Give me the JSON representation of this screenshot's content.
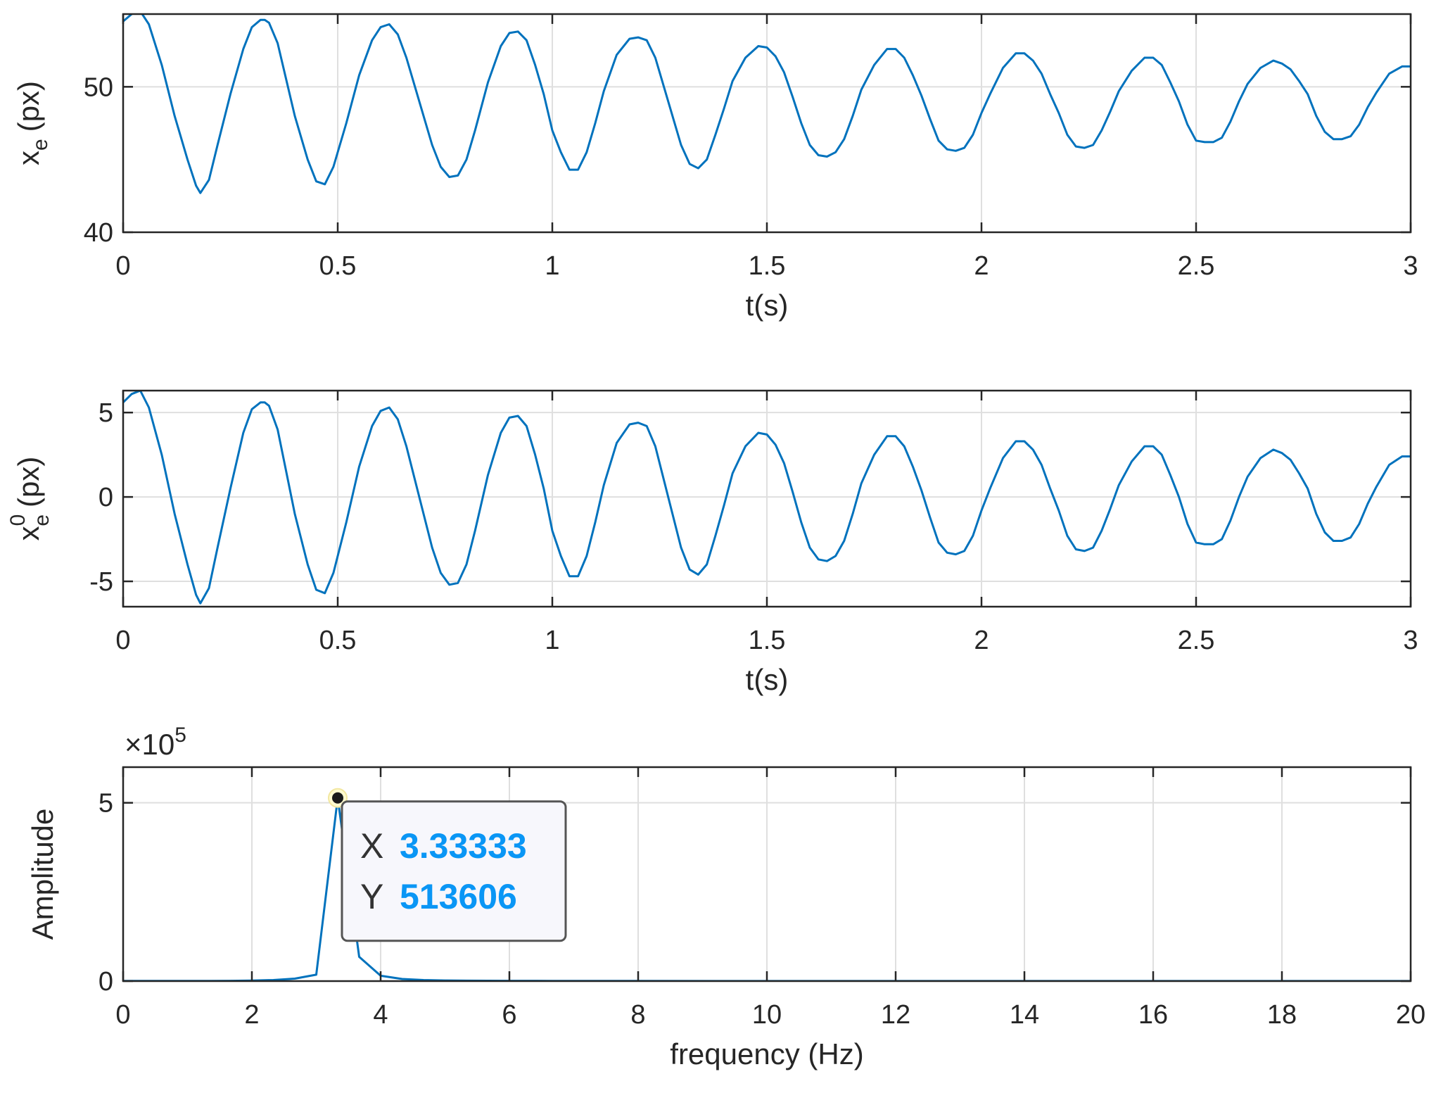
{
  "chart_data": [
    {
      "type": "line",
      "xlabel": "t(s)",
      "ylabel": {
        "base": "x",
        "sub": "e",
        "sup": "",
        "unit": "(px)"
      },
      "xlim": [
        0,
        3
      ],
      "ylim": [
        40,
        55
      ],
      "xticks": [
        "0",
        "0.5",
        "1",
        "1.5",
        "2",
        "2.5",
        "3"
      ],
      "yticks": [
        "40",
        "50"
      ],
      "grid": true,
      "series": [
        {
          "color": "#0072BD",
          "x": [
            0,
            0.02,
            0.04,
            0.06,
            0.09,
            0.12,
            0.15,
            0.17,
            0.18,
            0.2,
            0.22,
            0.25,
            0.28,
            0.3,
            0.32,
            0.33,
            0.34,
            0.36,
            0.38,
            0.4,
            0.43,
            0.45,
            0.47,
            0.49,
            0.52,
            0.55,
            0.58,
            0.6,
            0.62,
            0.64,
            0.66,
            0.68,
            0.7,
            0.72,
            0.74,
            0.76,
            0.78,
            0.8,
            0.82,
            0.85,
            0.88,
            0.9,
            0.92,
            0.94,
            0.96,
            0.98,
            1.0,
            1.02,
            1.04,
            1.06,
            1.08,
            1.1,
            1.12,
            1.15,
            1.18,
            1.2,
            1.22,
            1.24,
            1.26,
            1.28,
            1.3,
            1.32,
            1.34,
            1.36,
            1.38,
            1.4,
            1.42,
            1.45,
            1.48,
            1.5,
            1.52,
            1.54,
            1.56,
            1.58,
            1.6,
            1.62,
            1.64,
            1.66,
            1.68,
            1.7,
            1.72,
            1.75,
            1.78,
            1.8,
            1.82,
            1.84,
            1.86,
            1.88,
            1.9,
            1.92,
            1.94,
            1.96,
            1.98,
            2.0,
            2.02,
            2.05,
            2.08,
            2.1,
            2.12,
            2.14,
            2.16,
            2.18,
            2.2,
            2.22,
            2.24,
            2.26,
            2.28,
            2.3,
            2.32,
            2.35,
            2.38,
            2.4,
            2.42,
            2.44,
            2.46,
            2.48,
            2.5,
            2.52,
            2.54,
            2.56,
            2.58,
            2.6,
            2.62,
            2.65,
            2.68,
            2.7,
            2.72,
            2.74,
            2.76,
            2.78,
            2.8,
            2.82,
            2.84,
            2.86,
            2.88,
            2.9,
            2.92,
            2.95,
            2.98,
            3.0
          ],
          "y": [
            54.5,
            55.0,
            55.2,
            54.3,
            51.5,
            48.0,
            45.0,
            43.2,
            42.7,
            43.6,
            46.0,
            49.5,
            52.6,
            54.1,
            54.6,
            54.6,
            54.4,
            53.0,
            50.5,
            48.0,
            45.0,
            43.5,
            43.3,
            44.5,
            47.5,
            50.8,
            53.2,
            54.1,
            54.3,
            53.6,
            52.0,
            50.0,
            48.0,
            46.0,
            44.5,
            43.8,
            43.9,
            45.0,
            47.0,
            50.3,
            52.8,
            53.7,
            53.8,
            53.2,
            51.5,
            49.5,
            47.0,
            45.5,
            44.3,
            44.3,
            45.5,
            47.5,
            49.7,
            52.2,
            53.3,
            53.4,
            53.2,
            52.0,
            50.0,
            48.0,
            46.0,
            44.7,
            44.4,
            45.0,
            46.7,
            48.5,
            50.4,
            52.0,
            52.8,
            52.7,
            52.1,
            51.0,
            49.3,
            47.5,
            46.0,
            45.3,
            45.2,
            45.5,
            46.4,
            48.0,
            49.8,
            51.5,
            52.6,
            52.6,
            52.0,
            50.8,
            49.4,
            47.8,
            46.3,
            45.7,
            45.6,
            45.8,
            46.7,
            48.2,
            49.5,
            51.3,
            52.3,
            52.3,
            51.8,
            50.9,
            49.5,
            48.2,
            46.7,
            45.9,
            45.8,
            46.0,
            47.0,
            48.3,
            49.7,
            51.1,
            52.0,
            52.0,
            51.5,
            50.3,
            49.0,
            47.4,
            46.3,
            46.2,
            46.2,
            46.5,
            47.6,
            49.0,
            50.2,
            51.3,
            51.8,
            51.6,
            51.2,
            50.4,
            49.5,
            48.0,
            46.9,
            46.4,
            46.4,
            46.6,
            47.4,
            48.6,
            49.6,
            50.9,
            51.4,
            51.4
          ]
        }
      ]
    },
    {
      "type": "line",
      "xlabel": "t(s)",
      "ylabel": {
        "base": "x",
        "sub": "e",
        "sup": "0",
        "unit": "(px)"
      },
      "xlim": [
        0,
        3
      ],
      "ylim": [
        -6.5,
        6.3
      ],
      "xticks": [
        "0",
        "0.5",
        "1",
        "1.5",
        "2",
        "2.5",
        "3"
      ],
      "yticks": [
        "-5",
        "0",
        "5"
      ],
      "grid": true,
      "series": [
        {
          "color": "#0072BD",
          "x": [
            0,
            0.02,
            0.04,
            0.06,
            0.09,
            0.12,
            0.15,
            0.17,
            0.18,
            0.2,
            0.22,
            0.25,
            0.28,
            0.3,
            0.32,
            0.33,
            0.34,
            0.36,
            0.38,
            0.4,
            0.43,
            0.45,
            0.47,
            0.49,
            0.52,
            0.55,
            0.58,
            0.6,
            0.62,
            0.64,
            0.66,
            0.68,
            0.7,
            0.72,
            0.74,
            0.76,
            0.78,
            0.8,
            0.82,
            0.85,
            0.88,
            0.9,
            0.92,
            0.94,
            0.96,
            0.98,
            1.0,
            1.02,
            1.04,
            1.06,
            1.08,
            1.1,
            1.12,
            1.15,
            1.18,
            1.2,
            1.22,
            1.24,
            1.26,
            1.28,
            1.3,
            1.32,
            1.34,
            1.36,
            1.38,
            1.4,
            1.42,
            1.45,
            1.48,
            1.5,
            1.52,
            1.54,
            1.56,
            1.58,
            1.6,
            1.62,
            1.64,
            1.66,
            1.68,
            1.7,
            1.72,
            1.75,
            1.78,
            1.8,
            1.82,
            1.84,
            1.86,
            1.88,
            1.9,
            1.92,
            1.94,
            1.96,
            1.98,
            2.0,
            2.02,
            2.05,
            2.08,
            2.1,
            2.12,
            2.14,
            2.16,
            2.18,
            2.2,
            2.22,
            2.24,
            2.26,
            2.28,
            2.3,
            2.32,
            2.35,
            2.38,
            2.4,
            2.42,
            2.44,
            2.46,
            2.48,
            2.5,
            2.52,
            2.54,
            2.56,
            2.58,
            2.6,
            2.62,
            2.65,
            2.68,
            2.7,
            2.72,
            2.74,
            2.76,
            2.78,
            2.8,
            2.82,
            2.84,
            2.86,
            2.88,
            2.9,
            2.92,
            2.95,
            2.98,
            3.0
          ],
          "y": [
            5.6,
            6.1,
            6.3,
            5.3,
            2.5,
            -1.0,
            -4.0,
            -5.8,
            -6.3,
            -5.4,
            -3.0,
            0.5,
            3.8,
            5.2,
            5.6,
            5.6,
            5.4,
            4.0,
            1.5,
            -1.0,
            -4.0,
            -5.5,
            -5.7,
            -4.5,
            -1.5,
            1.8,
            4.2,
            5.1,
            5.3,
            4.6,
            3.0,
            1.0,
            -1.0,
            -3.0,
            -4.5,
            -5.2,
            -5.1,
            -4.0,
            -2.0,
            1.3,
            3.8,
            4.7,
            4.8,
            4.2,
            2.5,
            0.5,
            -2.0,
            -3.5,
            -4.7,
            -4.7,
            -3.5,
            -1.5,
            0.7,
            3.2,
            4.3,
            4.4,
            4.2,
            3.0,
            1.0,
            -1.0,
            -3.0,
            -4.3,
            -4.6,
            -4.0,
            -2.3,
            -0.5,
            1.4,
            3.0,
            3.8,
            3.7,
            3.1,
            2.0,
            0.3,
            -1.5,
            -3.0,
            -3.7,
            -3.8,
            -3.5,
            -2.6,
            -1.0,
            0.8,
            2.5,
            3.6,
            3.6,
            3.0,
            1.8,
            0.4,
            -1.2,
            -2.7,
            -3.3,
            -3.4,
            -3.2,
            -2.3,
            -0.8,
            0.5,
            2.3,
            3.3,
            3.3,
            2.8,
            1.9,
            0.5,
            -0.8,
            -2.3,
            -3.1,
            -3.2,
            -3.0,
            -2.0,
            -0.7,
            0.7,
            2.1,
            3.0,
            3.0,
            2.5,
            1.3,
            0.0,
            -1.6,
            -2.7,
            -2.8,
            -2.8,
            -2.5,
            -1.4,
            0.0,
            1.2,
            2.3,
            2.8,
            2.6,
            2.2,
            1.4,
            0.5,
            -1.0,
            -2.1,
            -2.6,
            -2.6,
            -2.4,
            -1.6,
            -0.4,
            0.6,
            1.9,
            2.4,
            2.4
          ]
        }
      ]
    },
    {
      "type": "line",
      "xlabel": "frequency (Hz)",
      "ylabel": {
        "base": "Amplitude",
        "sub": "",
        "sup": "",
        "unit": ""
      },
      "xlim": [
        0,
        20
      ],
      "ylim": [
        0,
        600000
      ],
      "xticks": [
        "0",
        "2",
        "4",
        "6",
        "8",
        "10",
        "12",
        "14",
        "16",
        "18",
        "20"
      ],
      "yticks": [
        "0",
        "5"
      ],
      "exponent_label": {
        "base": "×10",
        "power": "5"
      },
      "grid": true,
      "series": [
        {
          "color": "#0072BD",
          "x": [
            0,
            0.333,
            0.667,
            1.0,
            1.333,
            1.667,
            2.0,
            2.333,
            2.667,
            3.0,
            3.333,
            3.667,
            4.0,
            4.333,
            4.667,
            5.0,
            5.333,
            5.667,
            6.0,
            6.667,
            7.333,
            8.0,
            10.0,
            12.0,
            14.0,
            16.0,
            18.0,
            20.0
          ],
          "y": [
            500,
            400,
            400,
            500,
            600,
            800,
            1500,
            3000,
            7000,
            18000,
            513606,
            68000,
            15000,
            6000,
            3000,
            1800,
            1200,
            900,
            700,
            500,
            400,
            300,
            200,
            150,
            120,
            100,
            100,
            100
          ]
        }
      ],
      "datatip": {
        "x_label": "X",
        "x_value": "3.33333",
        "y_label": "Y",
        "y_value": "513606",
        "x": 3.33333,
        "y": 513606
      }
    }
  ]
}
